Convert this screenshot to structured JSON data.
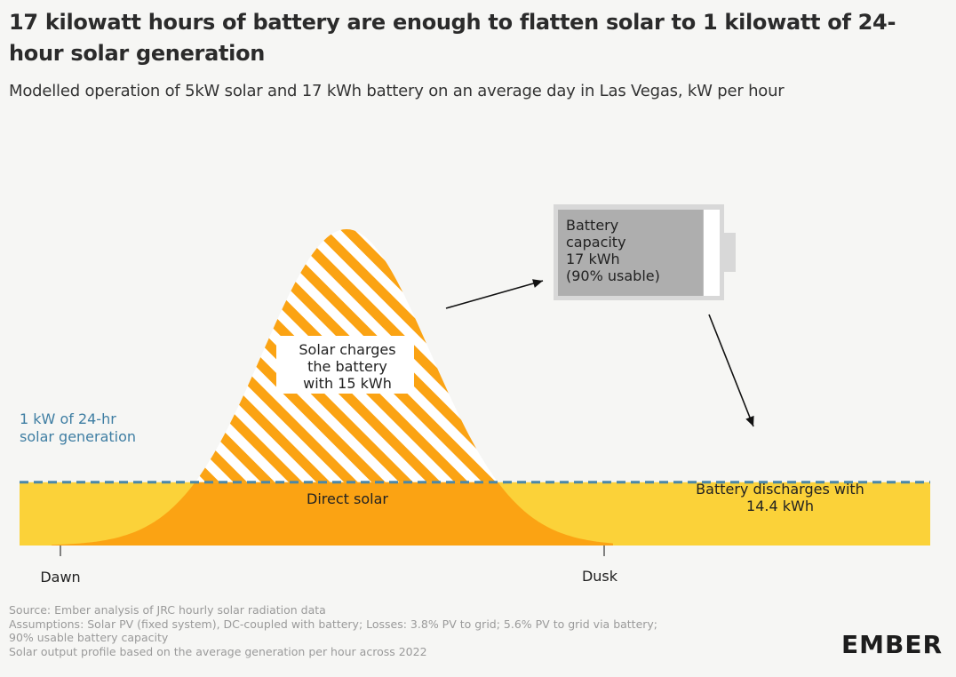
{
  "title": "17 kilowatt hours of battery are enough to flatten solar to 1 kilowatt of 24-hour solar generation",
  "subtitle": "Modelled operation of 5kW solar and 17 kWh battery on an average day in Las Vegas, kW per hour",
  "colors": {
    "background": "#f6f6f4",
    "battery_discharge_fill": "#fbd239",
    "direct_solar_fill": "#fba313",
    "charging_stripe": "#fba313",
    "dashed_line": "#4a87a8",
    "battery_body": "#aeaeae",
    "battery_frame": "#d8d8d8"
  },
  "chart_data": {
    "type": "area",
    "x_start_label": "Dawn",
    "x_end_label": "Dusk",
    "flat_line_label_lines": [
      "1 kW of 24-hr",
      "solar generation"
    ],
    "flat_line_value_kw": 1,
    "solar_peak_kw": 5,
    "series": [
      {
        "name": "Direct solar",
        "label_lines": [
          "Direct solar"
        ]
      },
      {
        "name": "Solar charges the battery",
        "label_lines": [
          "Solar charges",
          "the battery",
          "with 15 kWh"
        ],
        "energy_kwh": 15
      },
      {
        "name": "Battery discharges",
        "label_lines": [
          "Battery discharges with",
          "14.4 kWh"
        ],
        "energy_kwh": 14.4
      }
    ],
    "battery": {
      "label_lines": [
        "Battery",
        "capacity",
        "17 kWh",
        "(90% usable)"
      ],
      "capacity_kwh": 17,
      "usable_fraction": 0.9
    }
  },
  "footer": {
    "lines": [
      "Source: Ember analysis of JRC hourly solar radiation data",
      "Assumptions: Solar PV (fixed system), DC-coupled with battery; Losses: 3.8% PV to grid; 5.6% PV to grid via battery;",
      "90% usable battery capacity",
      "Solar output profile based on the average generation per hour across 2022"
    ]
  },
  "logo": {
    "text": "EMBER"
  }
}
